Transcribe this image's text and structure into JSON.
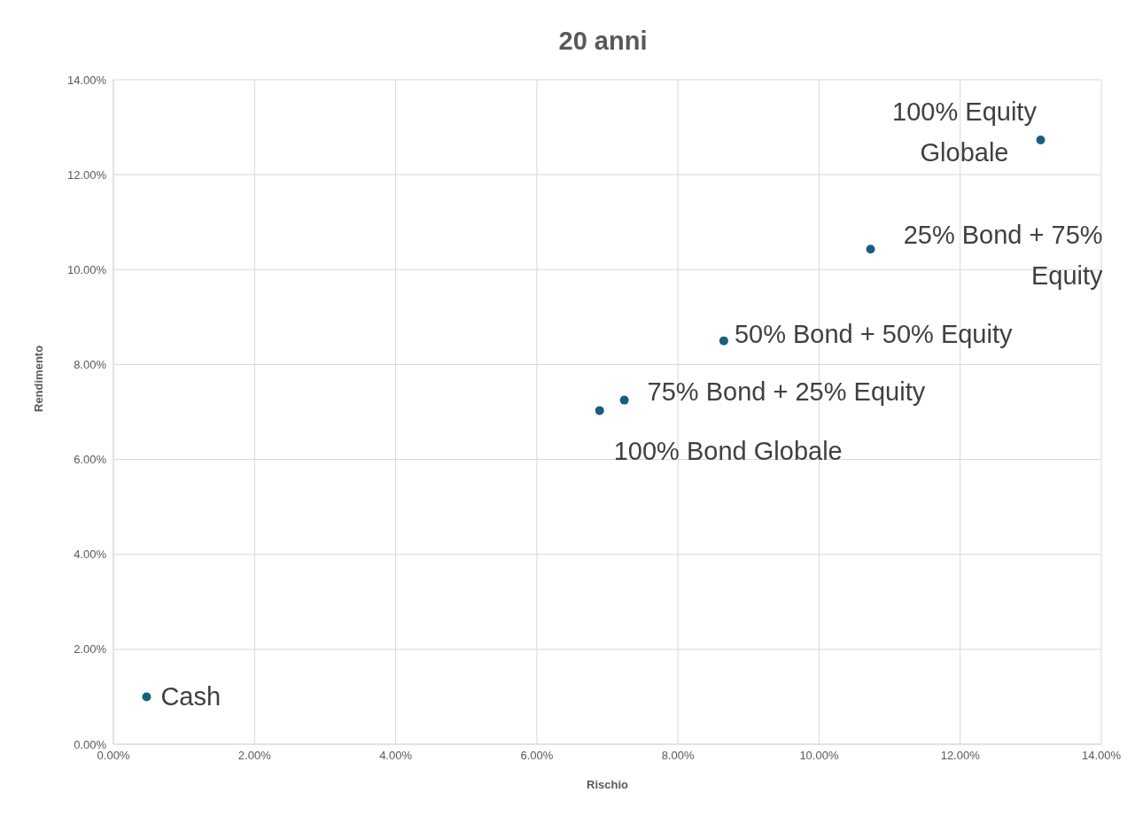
{
  "chart_data": {
    "type": "scatter",
    "title": "20 anni",
    "xlabel": "Rischio",
    "ylabel": "Rendimento",
    "x": [
      0.47,
      6.89,
      7.24,
      8.65,
      10.73,
      13.14
    ],
    "series": [
      {
        "color": "#156082",
        "values": [
          1.0,
          7.03,
          7.25,
          8.5,
          10.43,
          12.73
        ]
      }
    ],
    "annotations": [
      {
        "text": "Cash",
        "x": 0.47,
        "y": 1.0
      },
      {
        "text": "100% Bond Globale",
        "x": 6.89,
        "y": 7.03
      },
      {
        "text": "75% Bond + 25% Equity",
        "x": 7.24,
        "y": 7.25
      },
      {
        "text": "50% Bond + 50% Equity",
        "x": 8.65,
        "y": 8.5
      },
      {
        "text": "25% Bond + 75% Equity",
        "x": 10.73,
        "y": 10.43
      },
      {
        "text": "100% Equity Globale",
        "x": 13.14,
        "y": 12.73
      }
    ],
    "xlim": [
      0,
      14
    ],
    "ylim": [
      0,
      14
    ],
    "xticks": [
      {
        "value": 0,
        "label": "0.00%"
      },
      {
        "value": 2,
        "label": "2.00%"
      },
      {
        "value": 4,
        "label": "4.00%"
      },
      {
        "value": 6,
        "label": "6.00%"
      },
      {
        "value": 8,
        "label": "8.00%"
      },
      {
        "value": 10,
        "label": "10.00%"
      },
      {
        "value": 12,
        "label": "12.00%"
      },
      {
        "value": 14,
        "label": "14.00%"
      }
    ],
    "yticks": [
      {
        "value": 0,
        "label": "0.00%"
      },
      {
        "value": 2,
        "label": "2.00%"
      },
      {
        "value": 4,
        "label": "4.00%"
      },
      {
        "value": 6,
        "label": "6.00%"
      },
      {
        "value": 8,
        "label": "8.00%"
      },
      {
        "value": 10,
        "label": "10.00%"
      },
      {
        "value": 12,
        "label": "12.00%"
      },
      {
        "value": 14,
        "label": "14.00%"
      }
    ],
    "grid": true,
    "marker": "circle"
  }
}
